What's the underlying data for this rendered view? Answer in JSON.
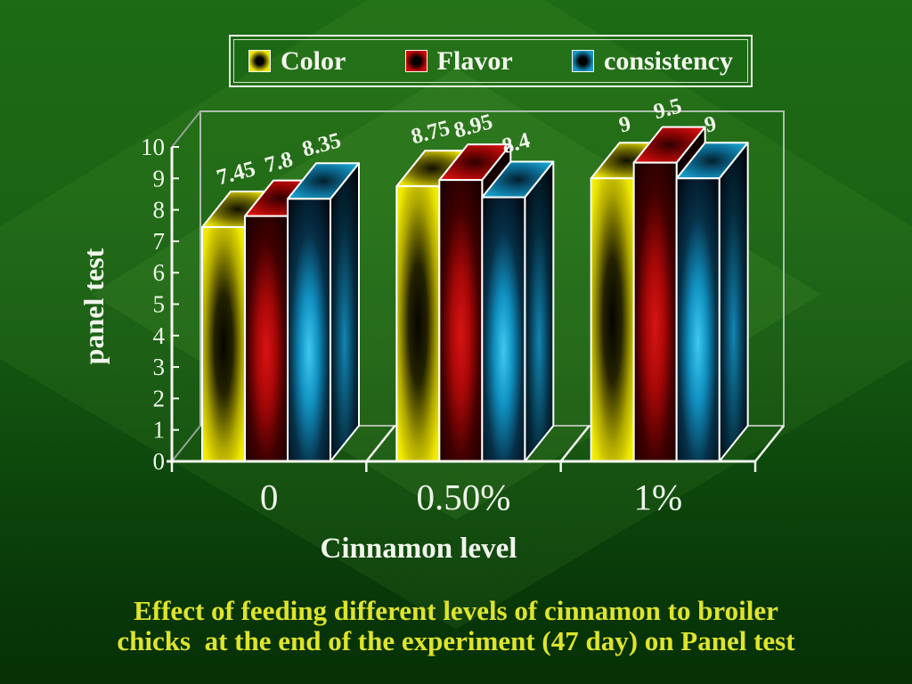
{
  "slide": {
    "background_top_color": "#1d6b15",
    "background_bottom_color": "#063106",
    "caption_color": "#dfe42c",
    "text_color": "#f0f5ec"
  },
  "legend": {
    "items": [
      {
        "label": "Color",
        "key": "yellow",
        "color": "#f0e800"
      },
      {
        "label": "Flavor",
        "key": "red",
        "color": "#cc0808"
      },
      {
        "label": "consistency",
        "key": "blue",
        "color": "#1898c8"
      }
    ]
  },
  "chart_data": {
    "type": "bar",
    "effect": "3d",
    "categories": [
      "0",
      "0.50%",
      "1%"
    ],
    "series": [
      {
        "name": "Color",
        "key": "yellow",
        "color_hex": "#f0e800",
        "values": [
          7.45,
          8.75,
          9
        ],
        "labels": [
          "7.45",
          "8.75",
          "9"
        ]
      },
      {
        "name": "Flavor",
        "key": "red",
        "color_hex": "#cc0808",
        "values": [
          7.8,
          8.95,
          9.5
        ],
        "labels": [
          "7.8",
          "8.95",
          "9.5"
        ]
      },
      {
        "name": "consistency",
        "key": "blue",
        "color_hex": "#1898c8",
        "values": [
          8.35,
          8.4,
          9
        ],
        "labels": [
          "8.35",
          "8.4",
          "9"
        ]
      }
    ],
    "xlabel": "Cinnamon level",
    "ylabel": "panel test",
    "ylim": [
      0,
      10
    ],
    "yticks": [
      0,
      1,
      2,
      3,
      4,
      5,
      6,
      7,
      8,
      9,
      10
    ],
    "legend_position": "top",
    "grid": false
  },
  "caption": {
    "line1": "Effect of feeding different levels of cinnamon to broiler",
    "line2": "chicks  at the end of the experiment (47 day) on Panel test"
  }
}
